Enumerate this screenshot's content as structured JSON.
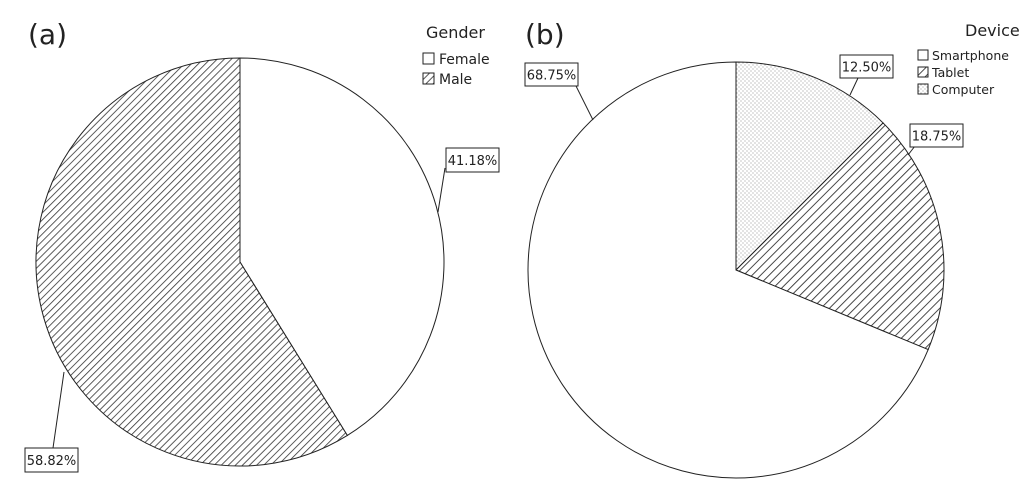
{
  "chart_data": [
    {
      "type": "pie",
      "panel_label": "(a)",
      "legend_title": "Gender",
      "legend_placement": "top-right",
      "categories": [
        "Female",
        "Male"
      ],
      "values": [
        41.18,
        58.82
      ],
      "data_labels": [
        "41.18%",
        "58.82%"
      ],
      "fills": [
        "none",
        "diagonal-hatch-dense"
      ]
    },
    {
      "type": "pie",
      "panel_label": "(b)",
      "legend_title": "Device",
      "legend_placement": "top-right",
      "categories": [
        "Smartphone",
        "Tablet",
        "Computer"
      ],
      "values": [
        68.75,
        18.75,
        12.5
      ],
      "data_labels": [
        "68.75%",
        "18.75%",
        "12.50%"
      ],
      "fills": [
        "none",
        "diagonal-hatch",
        "dots"
      ]
    }
  ]
}
